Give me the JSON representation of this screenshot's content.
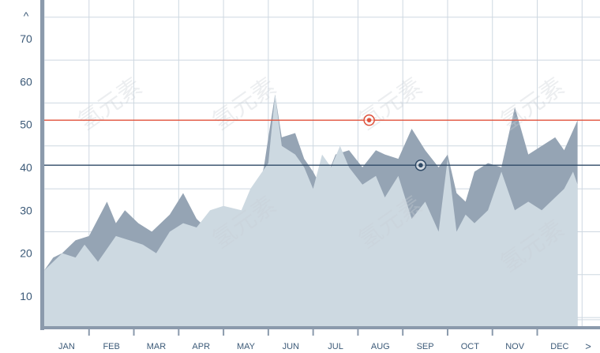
{
  "chart_data": {
    "type": "area",
    "title": "",
    "xlabel": "",
    "ylabel": "",
    "categories": [
      "JAN",
      "FEB",
      "MAR",
      "APR",
      "MAY",
      "JUN",
      "JUL",
      "AUG",
      "SEP",
      "OCT",
      "NOV",
      "DEC"
    ],
    "yticks": [
      10,
      20,
      30,
      40,
      50,
      60,
      70
    ],
    "ylim": [
      3,
      79
    ],
    "xlim": [
      -0.5,
      11.9
    ],
    "y_arrow_label": "^",
    "x_arrow_label": ">",
    "grid": true,
    "series": [
      {
        "x": [
          -0.5,
          -0.3,
          -0.1,
          0.2,
          0.5,
          0.9,
          1.1,
          1.3,
          1.6,
          1.9,
          2.3,
          2.6,
          2.9,
          3.2,
          3.5,
          3.9,
          4.2,
          4.4,
          4.5,
          4.65,
          4.8,
          5.1,
          5.3,
          5.5,
          5.7,
          6.0,
          6.3,
          6.6,
          6.9,
          7.1,
          7.4,
          7.7,
          8.0,
          8.3,
          8.5,
          8.7,
          8.9,
          9.1,
          9.4,
          9.7,
          10.0,
          10.3,
          10.6,
          10.9,
          11.1,
          11.4
        ],
        "values": [
          16,
          19,
          20,
          23,
          24,
          32,
          27,
          30,
          27,
          25,
          29,
          34,
          28,
          25,
          30,
          28,
          32,
          40,
          47,
          57,
          47,
          48,
          42,
          39,
          35,
          43,
          44,
          40,
          44,
          43,
          42,
          49,
          44,
          40,
          43,
          34,
          32,
          39,
          41,
          40,
          54,
          43,
          45,
          47,
          44,
          51
        ]
      },
      {
        "x": [
          -0.5,
          -0.3,
          -0.1,
          0.2,
          0.4,
          0.7,
          1.1,
          1.4,
          1.7,
          2.0,
          2.3,
          2.6,
          2.9,
          3.2,
          3.5,
          3.9,
          4.1,
          4.3,
          4.5,
          4.65,
          4.8,
          5.1,
          5.3,
          5.5,
          5.7,
          5.9,
          6.1,
          6.3,
          6.6,
          6.9,
          7.1,
          7.4,
          7.7,
          8.0,
          8.3,
          8.5,
          8.7,
          8.9,
          9.1,
          9.4,
          9.7,
          10.0,
          10.3,
          10.6,
          10.9,
          11.1,
          11.3,
          11.4
        ],
        "values": [
          16,
          18,
          20,
          19,
          22,
          18,
          24,
          23,
          22,
          20,
          25,
          27,
          26,
          30,
          31,
          30,
          35,
          38,
          41,
          57,
          45,
          43,
          40,
          35,
          43,
          40,
          45,
          40,
          36,
          38,
          33,
          38,
          28,
          32,
          25,
          42,
          25,
          29,
          27,
          30,
          39,
          30,
          32,
          30,
          33,
          35,
          39,
          36
        ]
      }
    ],
    "reference_lines": [
      {
        "value": 51,
        "color": "#e0503a",
        "marker_x": 6.75
      },
      {
        "value": 40.5,
        "color": "#2f4a66",
        "marker_x": 7.9
      }
    ]
  },
  "colors": {
    "series_dark": "#95a4b4",
    "series_light": "#cdd9e1",
    "grid": "#ced8e1",
    "axis": "#8b9aac",
    "label": "#3c5a78",
    "background": "#ffffff"
  },
  "watermark": "氢元素"
}
